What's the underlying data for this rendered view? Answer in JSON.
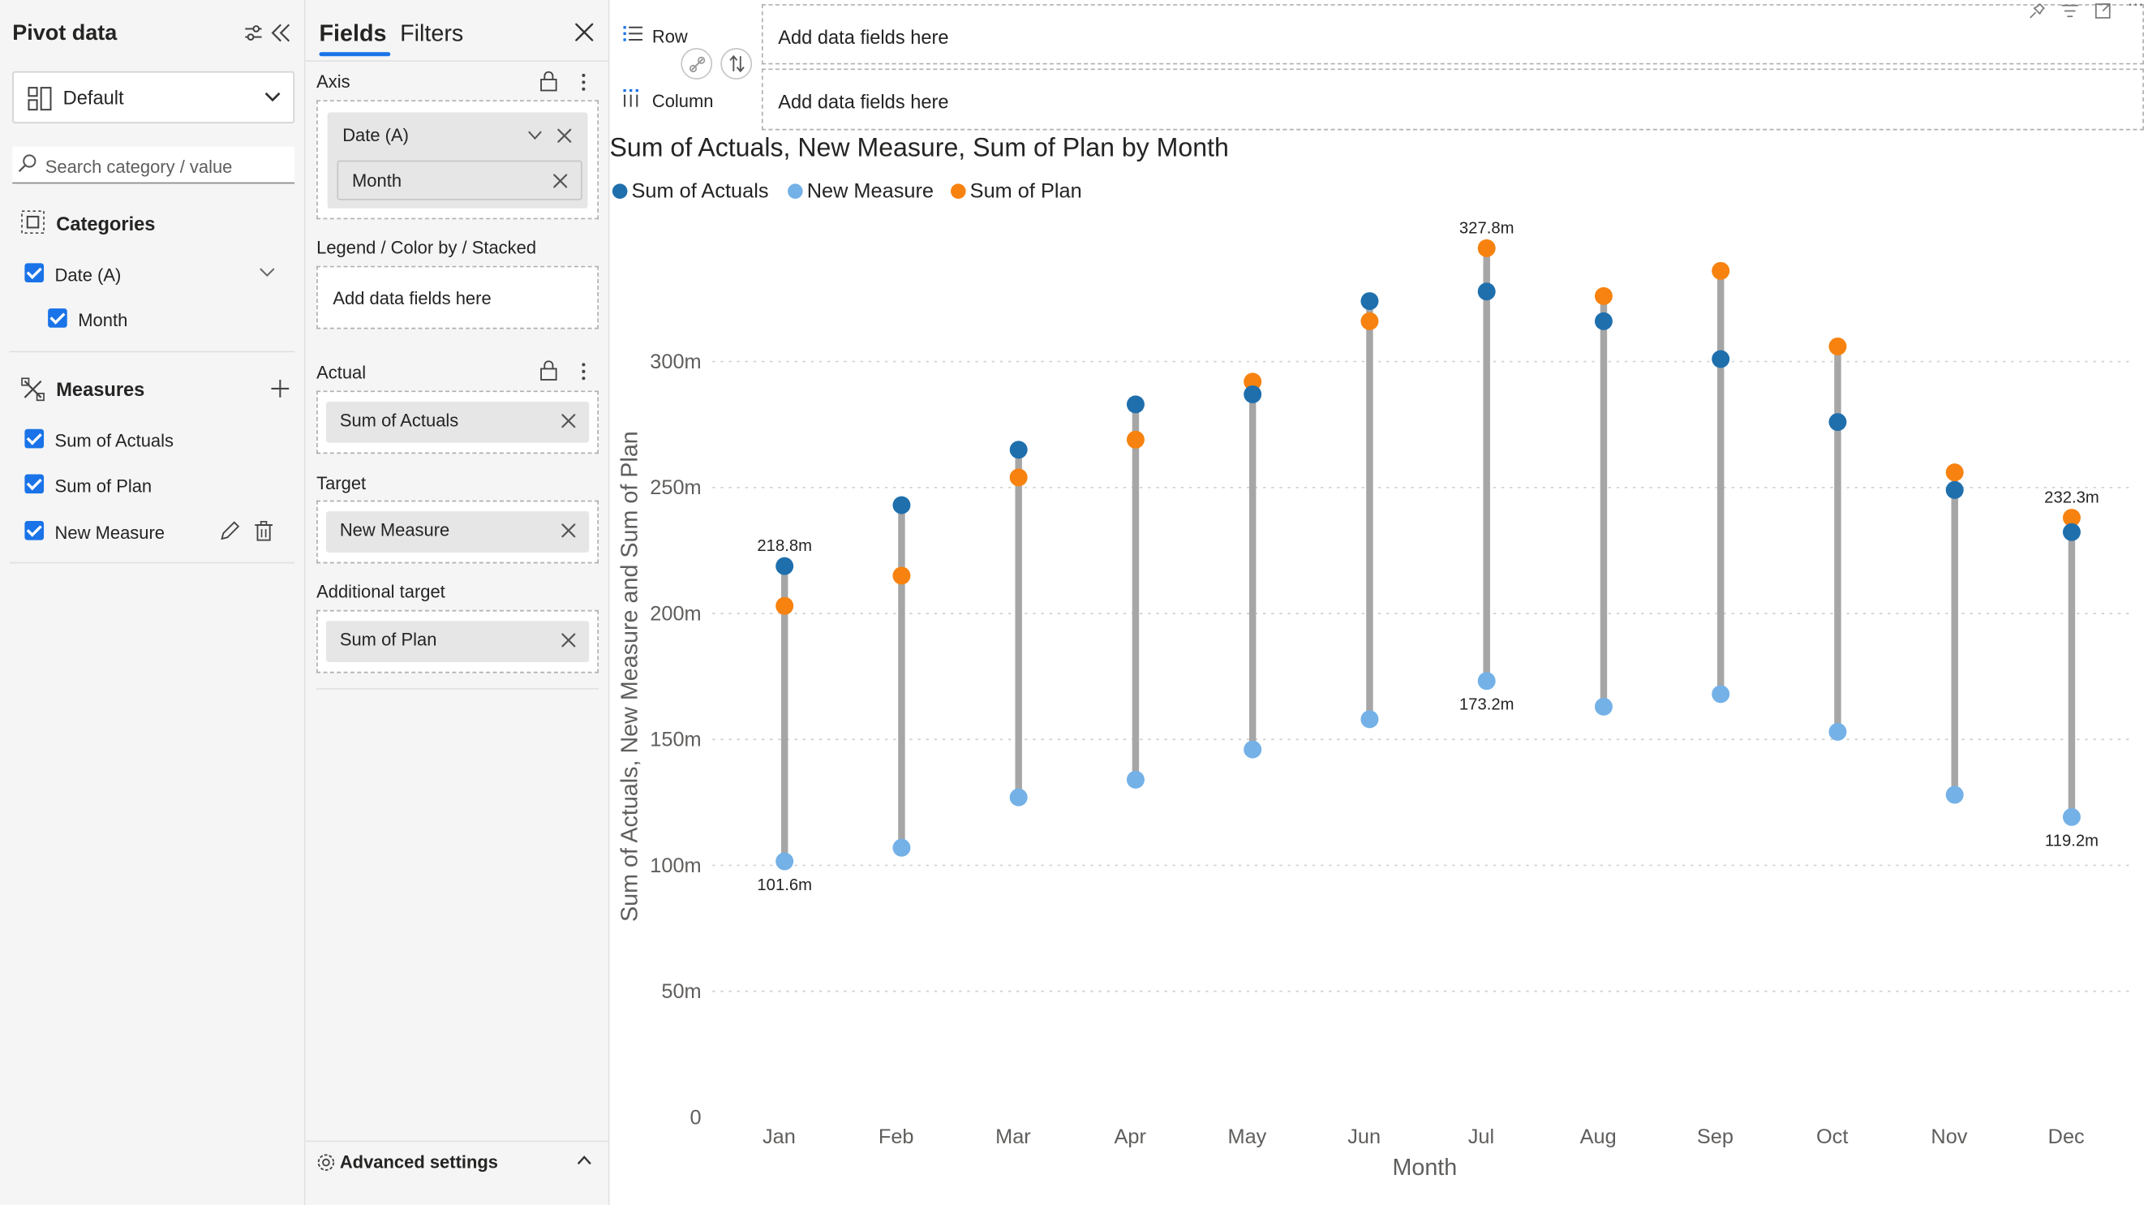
{
  "pivot": {
    "title": "Pivot data",
    "layout_select": "Default",
    "search_placeholder": "Search category / value",
    "categories_heading": "Categories",
    "categories": [
      "Date (A)",
      "Month"
    ],
    "measures_heading": "Measures",
    "measures": [
      "Sum of Actuals",
      "Sum of Plan",
      "New Measure"
    ]
  },
  "fields": {
    "tab_fields": "Fields",
    "tab_filters": "Filters",
    "axis_label": "Axis",
    "axis_pill": "Date (A)",
    "axis_subpill": "Month",
    "legend_label": "Legend / Color by / Stacked",
    "legend_placeholder": "Add data fields here",
    "actual_label": "Actual",
    "actual_pill": "Sum of Actuals",
    "target_label": "Target",
    "target_pill": "New Measure",
    "addtarget_label": "Additional target",
    "addtarget_pill": "Sum of Plan",
    "advanced": "Advanced settings"
  },
  "dropzones": {
    "row_label": "Row",
    "column_label": "Column",
    "row_placeholder": "Add data fields here",
    "column_placeholder": "Add data fields here"
  },
  "colors": {
    "actuals": "#1f6fad",
    "new_measure": "#74b1e7",
    "plan": "#f7820f",
    "stem": "#a6a6a6",
    "accent": "#1a73e8"
  },
  "chart_data": {
    "type": "scatter",
    "title": "Sum of Actuals, New Measure, Sum of Plan by Month",
    "xlabel": "Month",
    "ylabel": "Sum of Actuals, New Measure and Sum of Plan",
    "categories": [
      "Jan",
      "Feb",
      "Mar",
      "Apr",
      "May",
      "Jun",
      "Jul",
      "Aug",
      "Sep",
      "Oct",
      "Nov",
      "Dec"
    ],
    "yticks": [
      "0",
      "50m",
      "100m",
      "150m",
      "200m",
      "250m",
      "300m"
    ],
    "ylim": [
      0,
      350
    ],
    "legend_position": "top-left",
    "series": [
      {
        "name": "Sum of Actuals",
        "values": [
          218.8,
          243,
          265,
          283,
          287,
          324,
          327.8,
          316,
          301,
          276,
          249,
          232.3
        ]
      },
      {
        "name": "New Measure",
        "values": [
          101.6,
          107,
          127,
          134,
          146,
          158,
          173.2,
          163,
          168,
          153,
          128,
          119.2
        ]
      },
      {
        "name": "Sum of Plan",
        "values": [
          203,
          215,
          254,
          269,
          292,
          316,
          345,
          326,
          336,
          306,
          256,
          238
        ]
      }
    ],
    "data_labels": [
      {
        "month": "Jan",
        "text": "218.8m",
        "at": 218.8,
        "pos": "above"
      },
      {
        "month": "Jan",
        "text": "101.6m",
        "at": 101.6,
        "pos": "below"
      },
      {
        "month": "Jul",
        "text": "327.8m",
        "at": 345,
        "pos": "above"
      },
      {
        "month": "Jul",
        "text": "173.2m",
        "at": 173.2,
        "pos": "below"
      },
      {
        "month": "Dec",
        "text": "232.3m",
        "at": 238,
        "pos": "above"
      },
      {
        "month": "Dec",
        "text": "119.2m",
        "at": 119.2,
        "pos": "below"
      }
    ]
  }
}
